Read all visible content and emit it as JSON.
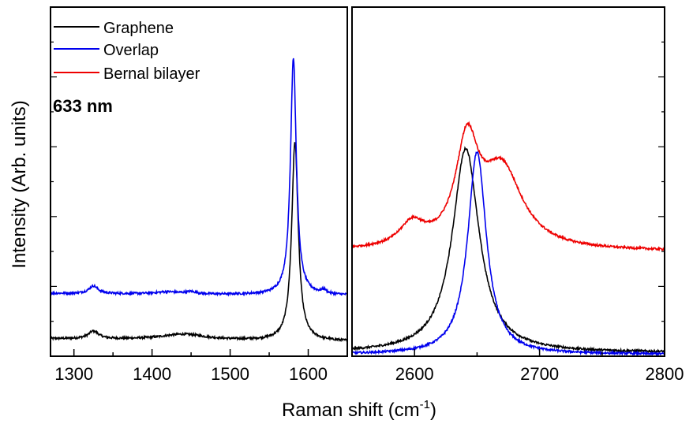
{
  "chart_data": {
    "type": "line",
    "ylabel": "Intensity (Arb. units)",
    "xlabel_main": "Raman shift (cm",
    "xlabel_sup": "-1",
    "xlabel_end": ")",
    "annotation": "633 nm",
    "y_ticklabels": "none",
    "legend_placement": "top-left of left panel",
    "legend": [
      {
        "label": "Graphene",
        "color": "#000000"
      },
      {
        "label": "Overlap",
        "color": "#0000ee"
      },
      {
        "label": "Bernal bilayer",
        "color": "#ee0000"
      }
    ],
    "panels": [
      {
        "name": "left",
        "xlim": [
          1270,
          1650
        ],
        "ylim": [
          0,
          10
        ],
        "xticks": [
          1300,
          1400,
          1500,
          1600
        ],
        "xtick_labels": [
          "1300",
          "1400",
          "1500",
          "1600"
        ],
        "series": [
          {
            "name": "Graphene",
            "color": "#000000",
            "base": 0.5,
            "slope": -0.0002,
            "peaks": [
              [
                1325,
                0.22,
                8
              ],
              [
                1440,
                0.16,
                35
              ],
              [
                1583,
                5.7,
                5
              ]
            ]
          },
          {
            "name": "Overlap",
            "color": "#0000ee",
            "base": 1.8,
            "slope": -0.00015,
            "peaks": [
              [
                1325,
                0.22,
                7
              ],
              [
                1420,
                0.06,
                20
              ],
              [
                1450,
                0.06,
                8
              ],
              [
                1581,
                6.8,
                4.5
              ],
              [
                1620,
                0.1,
                4
              ]
            ]
          }
        ]
      },
      {
        "name": "right",
        "xlim": [
          2550,
          2800
        ],
        "ylim": [
          0,
          10
        ],
        "xticks": [
          2600,
          2700,
          2800
        ],
        "xtick_labels": [
          "2600",
          "2700",
          "2800"
        ],
        "series": [
          {
            "name": "Graphene",
            "color": "#000000",
            "base": 0.1,
            "slope": 0,
            "peaks": [
              [
                2641,
                5.85,
                13
              ]
            ]
          },
          {
            "name": "Overlap",
            "color": "#0000ee",
            "base": 0.05,
            "slope": 0,
            "peaks": [
              [
                2650,
                5.8,
                9
              ]
            ]
          },
          {
            "name": "Bernal bilayer",
            "color": "#ee0000",
            "base": 3.0,
            "slope": 0,
            "peaks": [
              [
                2598,
                0.65,
                12
              ],
              [
                2642,
                2.85,
                11
              ],
              [
                2670,
                2.25,
                20
              ]
            ]
          }
        ]
      }
    ]
  }
}
